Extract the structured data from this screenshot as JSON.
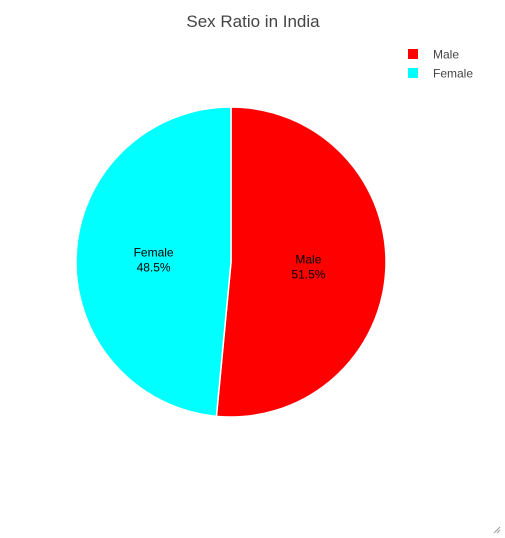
{
  "chart_data": {
    "type": "pie",
    "title": "Sex Ratio in India",
    "categories": [
      "Male",
      "Female"
    ],
    "values": [
      51.5,
      48.5
    ],
    "labels": [
      "51.5%",
      "48.5%"
    ],
    "colors": [
      "#ff0000",
      "#00ffff"
    ],
    "legend": {
      "placement": "top-right",
      "entries": [
        "Male",
        "Female"
      ]
    }
  }
}
